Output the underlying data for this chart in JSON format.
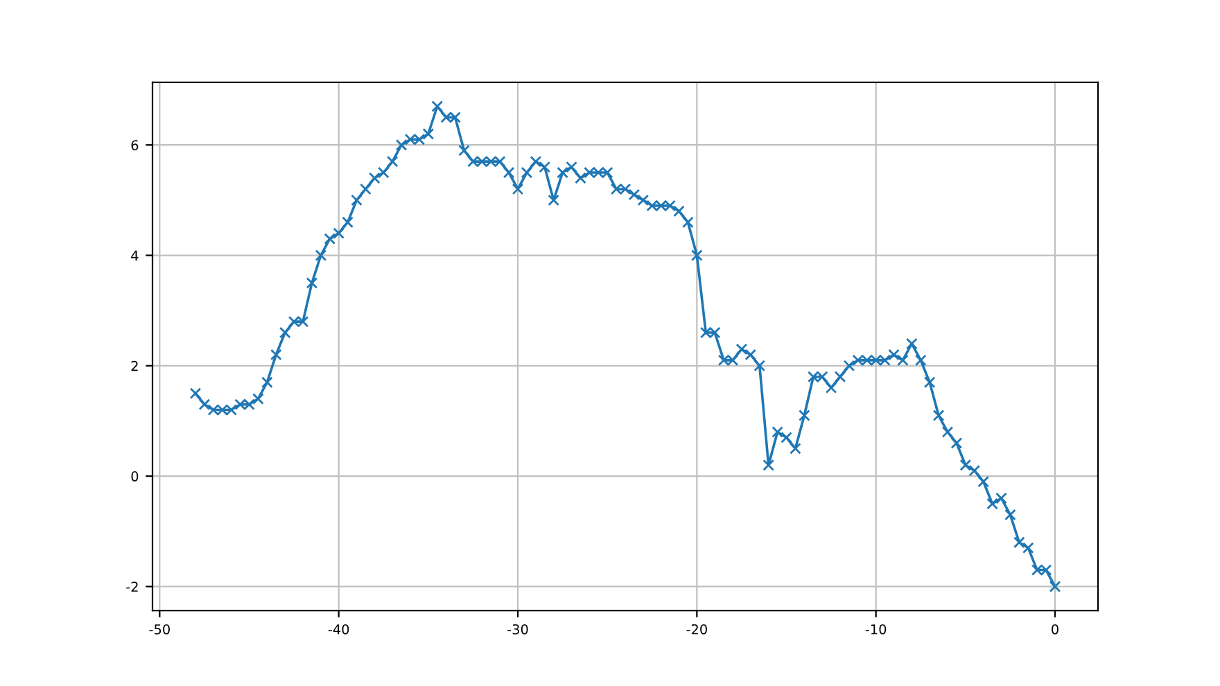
{
  "chart_data": {
    "type": "line",
    "x": [
      -48,
      -47.5,
      -47,
      -46.5,
      -46,
      -45.5,
      -45,
      -44.5,
      -44,
      -43.5,
      -43,
      -42.5,
      -42,
      -41.5,
      -41,
      -40.5,
      -40,
      -39.5,
      -39,
      -38.5,
      -38,
      -37.5,
      -37,
      -36.5,
      -36,
      -35.5,
      -35,
      -34.5,
      -34,
      -33.5,
      -33,
      -32.5,
      -32,
      -31.5,
      -31,
      -30.5,
      -30,
      -29.5,
      -29,
      -28.5,
      -28,
      -27.5,
      -27,
      -26.5,
      -26,
      -25.5,
      -25,
      -24.5,
      -24,
      -23.5,
      -23,
      -22.5,
      -22,
      -21.5,
      -21,
      -20.5,
      -20,
      -19.5,
      -19,
      -18.5,
      -18,
      -17.5,
      -17,
      -16.5,
      -16,
      -15.5,
      -15,
      -14.5,
      -14,
      -13.5,
      -13,
      -12.5,
      -12,
      -11.5,
      -11,
      -10.5,
      -10,
      -9.5,
      -9,
      -8.5,
      -8,
      -7.5,
      -7,
      -6.5,
      -6,
      -5.5,
      -5,
      -4.5,
      -4,
      -3.5,
      -3,
      -2.5,
      -2,
      -1.5,
      -1,
      -0.5,
      0
    ],
    "series": [
      {
        "color": "#1f77b4",
        "values": [
          1.5,
          1.3,
          1.2,
          1.2,
          1.2,
          1.3,
          1.3,
          1.4,
          1.7,
          2.2,
          2.6,
          2.8,
          2.8,
          3.5,
          4.0,
          4.3,
          4.4,
          4.6,
          5.0,
          5.2,
          5.4,
          5.5,
          5.7,
          6.0,
          6.1,
          6.1,
          6.2,
          6.7,
          6.5,
          6.5,
          5.9,
          5.7,
          5.7,
          5.7,
          5.7,
          5.5,
          5.2,
          5.5,
          5.7,
          5.6,
          5.0,
          5.5,
          5.6,
          5.4,
          5.5,
          5.5,
          5.5,
          5.2,
          5.2,
          5.1,
          5.0,
          4.9,
          4.9,
          4.9,
          4.8,
          4.6,
          4.0,
          2.6,
          2.6,
          2.1,
          2.1,
          2.3,
          2.2,
          2.0,
          0.2,
          0.8,
          0.7,
          0.5,
          1.1,
          1.8,
          1.8,
          1.6,
          1.8,
          2.0,
          2.1,
          2.1,
          2.1,
          2.1,
          2.2,
          2.1,
          2.4,
          2.1,
          1.7,
          1.1,
          0.8,
          0.6,
          0.2,
          0.1,
          -0.1,
          -0.5,
          -0.4,
          -0.7,
          -1.2,
          -1.3,
          -1.7,
          -1.7,
          -2.0
        ]
      }
    ],
    "xlim": [
      -50.4,
      2.4
    ],
    "ylim": [
      -2.435,
      7.135
    ],
    "xticks": [
      -50,
      -40,
      -30,
      -20,
      -10,
      0
    ],
    "yticks": [
      -2,
      0,
      2,
      4,
      6
    ],
    "grid": true,
    "marker": "cross",
    "line_style": "solid"
  }
}
